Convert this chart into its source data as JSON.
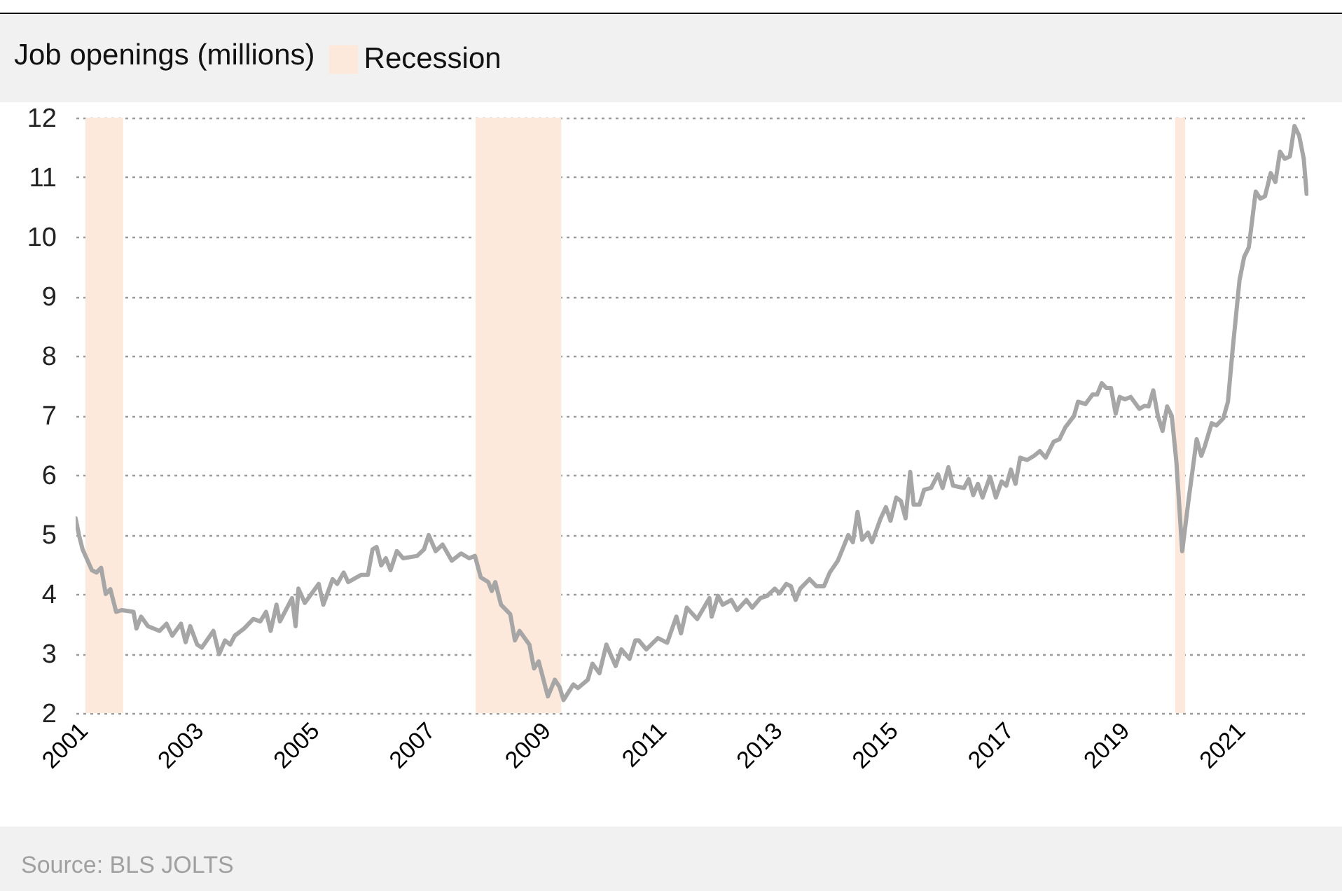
{
  "chart_data": {
    "type": "line",
    "title": "Job openings (millions)",
    "x": [
      2001.0,
      2001.06,
      2001.12,
      2001.28,
      2001.36,
      2001.44,
      2001.52,
      2001.6,
      2001.7,
      2001.8,
      2002.0,
      2002.05,
      2002.13,
      2002.25,
      2002.45,
      2002.57,
      2002.67,
      2002.82,
      2002.9,
      2002.98,
      2003.1,
      2003.18,
      2003.38,
      2003.48,
      2003.58,
      2003.67,
      2003.75,
      2003.91,
      2004.07,
      2004.19,
      2004.29,
      2004.37,
      2004.47,
      2004.53,
      2004.74,
      2004.8,
      2004.85,
      2004.96,
      2005.2,
      2005.28,
      2005.44,
      2005.52,
      2005.63,
      2005.71,
      2005.93,
      2006.05,
      2006.13,
      2006.2,
      2006.28,
      2006.36,
      2006.44,
      2006.55,
      2006.66,
      2006.9,
      2007.02,
      2007.1,
      2007.22,
      2007.34,
      2007.5,
      2007.66,
      2007.8,
      2007.9,
      2008.0,
      2008.13,
      2008.19,
      2008.25,
      2008.35,
      2008.51,
      2008.59,
      2008.67,
      2008.84,
      2008.92,
      2009.0,
      2009.16,
      2009.28,
      2009.36,
      2009.43,
      2009.6,
      2009.68,
      2009.85,
      2009.93,
      2010.05,
      2010.17,
      2010.33,
      2010.43,
      2010.57,
      2010.67,
      2010.73,
      2010.86,
      2011.06,
      2011.22,
      2011.38,
      2011.46,
      2011.56,
      2011.74,
      2011.95,
      2011.99,
      2012.1,
      2012.18,
      2012.33,
      2012.43,
      2012.59,
      2012.69,
      2012.83,
      2012.95,
      2013.08,
      2013.16,
      2013.28,
      2013.36,
      2013.44,
      2013.52,
      2013.68,
      2013.8,
      2013.93,
      2014.03,
      2014.17,
      2014.35,
      2014.43,
      2014.51,
      2014.59,
      2014.69,
      2014.76,
      2014.91,
      2015.0,
      2015.08,
      2015.18,
      2015.26,
      2015.34,
      2015.42,
      2015.48,
      2015.58,
      2015.66,
      2015.78,
      2015.9,
      2015.98,
      2016.08,
      2016.16,
      2016.35,
      2016.43,
      2016.51,
      2016.59,
      2016.67,
      2016.8,
      2016.9,
      2017.0,
      2017.08,
      2017.16,
      2017.24,
      2017.32,
      2017.44,
      2017.56,
      2017.66,
      2017.76,
      2017.9,
      2018.0,
      2018.1,
      2018.25,
      2018.32,
      2018.45,
      2018.57,
      2018.65,
      2018.73,
      2018.81,
      2018.89,
      2018.97,
      2019.04,
      2019.13,
      2019.23,
      2019.38,
      2019.47,
      2019.54,
      2019.62,
      2019.7,
      2019.78,
      2019.86,
      2019.94,
      2020.02,
      2020.12,
      2020.23,
      2020.37,
      2020.45,
      2020.51,
      2020.63,
      2020.71,
      2020.83,
      2020.91,
      2020.99,
      2021.11,
      2021.19,
      2021.27,
      2021.39,
      2021.47,
      2021.55,
      2021.65,
      2021.73,
      2021.81,
      2021.89,
      2021.98,
      2022.06,
      2022.14,
      2022.22,
      2022.27
    ],
    "series": [
      {
        "color": "#a6a6a6",
        "values": [
          5.27,
          4.98,
          4.75,
          4.4,
          4.36,
          4.44,
          4.0,
          4.08,
          3.7,
          3.73,
          3.7,
          3.42,
          3.62,
          3.46,
          3.38,
          3.5,
          3.3,
          3.5,
          3.19,
          3.46,
          3.15,
          3.1,
          3.38,
          2.99,
          3.22,
          3.15,
          3.3,
          3.42,
          3.58,
          3.54,
          3.7,
          3.38,
          3.82,
          3.54,
          3.93,
          3.46,
          4.09,
          3.85,
          4.17,
          3.82,
          4.25,
          4.17,
          4.36,
          4.2,
          4.32,
          4.32,
          4.75,
          4.79,
          4.48,
          4.6,
          4.4,
          4.72,
          4.6,
          4.64,
          4.75,
          4.99,
          4.72,
          4.83,
          4.56,
          4.68,
          4.6,
          4.64,
          4.28,
          4.2,
          4.05,
          4.2,
          3.82,
          3.66,
          3.22,
          3.38,
          3.15,
          2.75,
          2.87,
          2.28,
          2.56,
          2.44,
          2.22,
          2.48,
          2.42,
          2.56,
          2.83,
          2.67,
          3.15,
          2.79,
          3.07,
          2.91,
          3.22,
          3.22,
          3.07,
          3.26,
          3.18,
          3.62,
          3.34,
          3.77,
          3.58,
          3.93,
          3.62,
          3.97,
          3.82,
          3.9,
          3.73,
          3.9,
          3.77,
          3.93,
          3.97,
          4.09,
          4.01,
          4.17,
          4.13,
          3.9,
          4.09,
          4.25,
          4.13,
          4.13,
          4.36,
          4.56,
          4.99,
          4.87,
          5.38,
          4.91,
          5.03,
          4.87,
          5.27,
          5.46,
          5.23,
          5.62,
          5.56,
          5.27,
          6.05,
          5.5,
          5.5,
          5.75,
          5.78,
          6.01,
          5.78,
          6.13,
          5.82,
          5.78,
          5.93,
          5.66,
          5.85,
          5.62,
          5.97,
          5.62,
          5.89,
          5.82,
          6.09,
          5.85,
          6.29,
          6.25,
          6.32,
          6.4,
          6.29,
          6.56,
          6.6,
          6.8,
          6.99,
          7.23,
          7.19,
          7.35,
          7.35,
          7.54,
          7.46,
          7.46,
          7.03,
          7.31,
          7.27,
          7.31,
          7.11,
          7.16,
          7.15,
          7.42,
          6.99,
          6.74,
          7.15,
          6.99,
          6.21,
          4.72,
          5.58,
          6.6,
          6.32,
          6.48,
          6.87,
          6.83,
          6.95,
          7.23,
          8.09,
          9.27,
          9.66,
          9.82,
          10.76,
          10.64,
          10.68,
          11.07,
          10.92,
          11.43,
          11.31,
          11.35,
          11.86,
          11.7,
          11.31,
          10.72
        ]
      }
    ],
    "xlim": [
      2001,
      2022.3
    ],
    "xticks": [
      2001,
      2003,
      2005,
      2007,
      2009,
      2011,
      2013,
      2015,
      2017,
      2019,
      2021
    ],
    "ylim": [
      2,
      12
    ],
    "yticks": [
      2,
      3,
      4,
      5,
      6,
      7,
      8,
      9,
      10,
      11,
      12
    ],
    "grid": "y",
    "legend": "top left",
    "bands": [
      {
        "axis": "x",
        "from": 2001.17,
        "to": 2001.82,
        "label": "Recession",
        "color": "#fde9db"
      },
      {
        "axis": "x",
        "from": 2007.91,
        "to": 2009.39,
        "color": "#fde9db"
      },
      {
        "axis": "x",
        "from": 2020.0,
        "to": 2020.17,
        "color": "#fde9db"
      }
    ],
    "annotations": [
      "Source: BLS JOLTS"
    ]
  }
}
